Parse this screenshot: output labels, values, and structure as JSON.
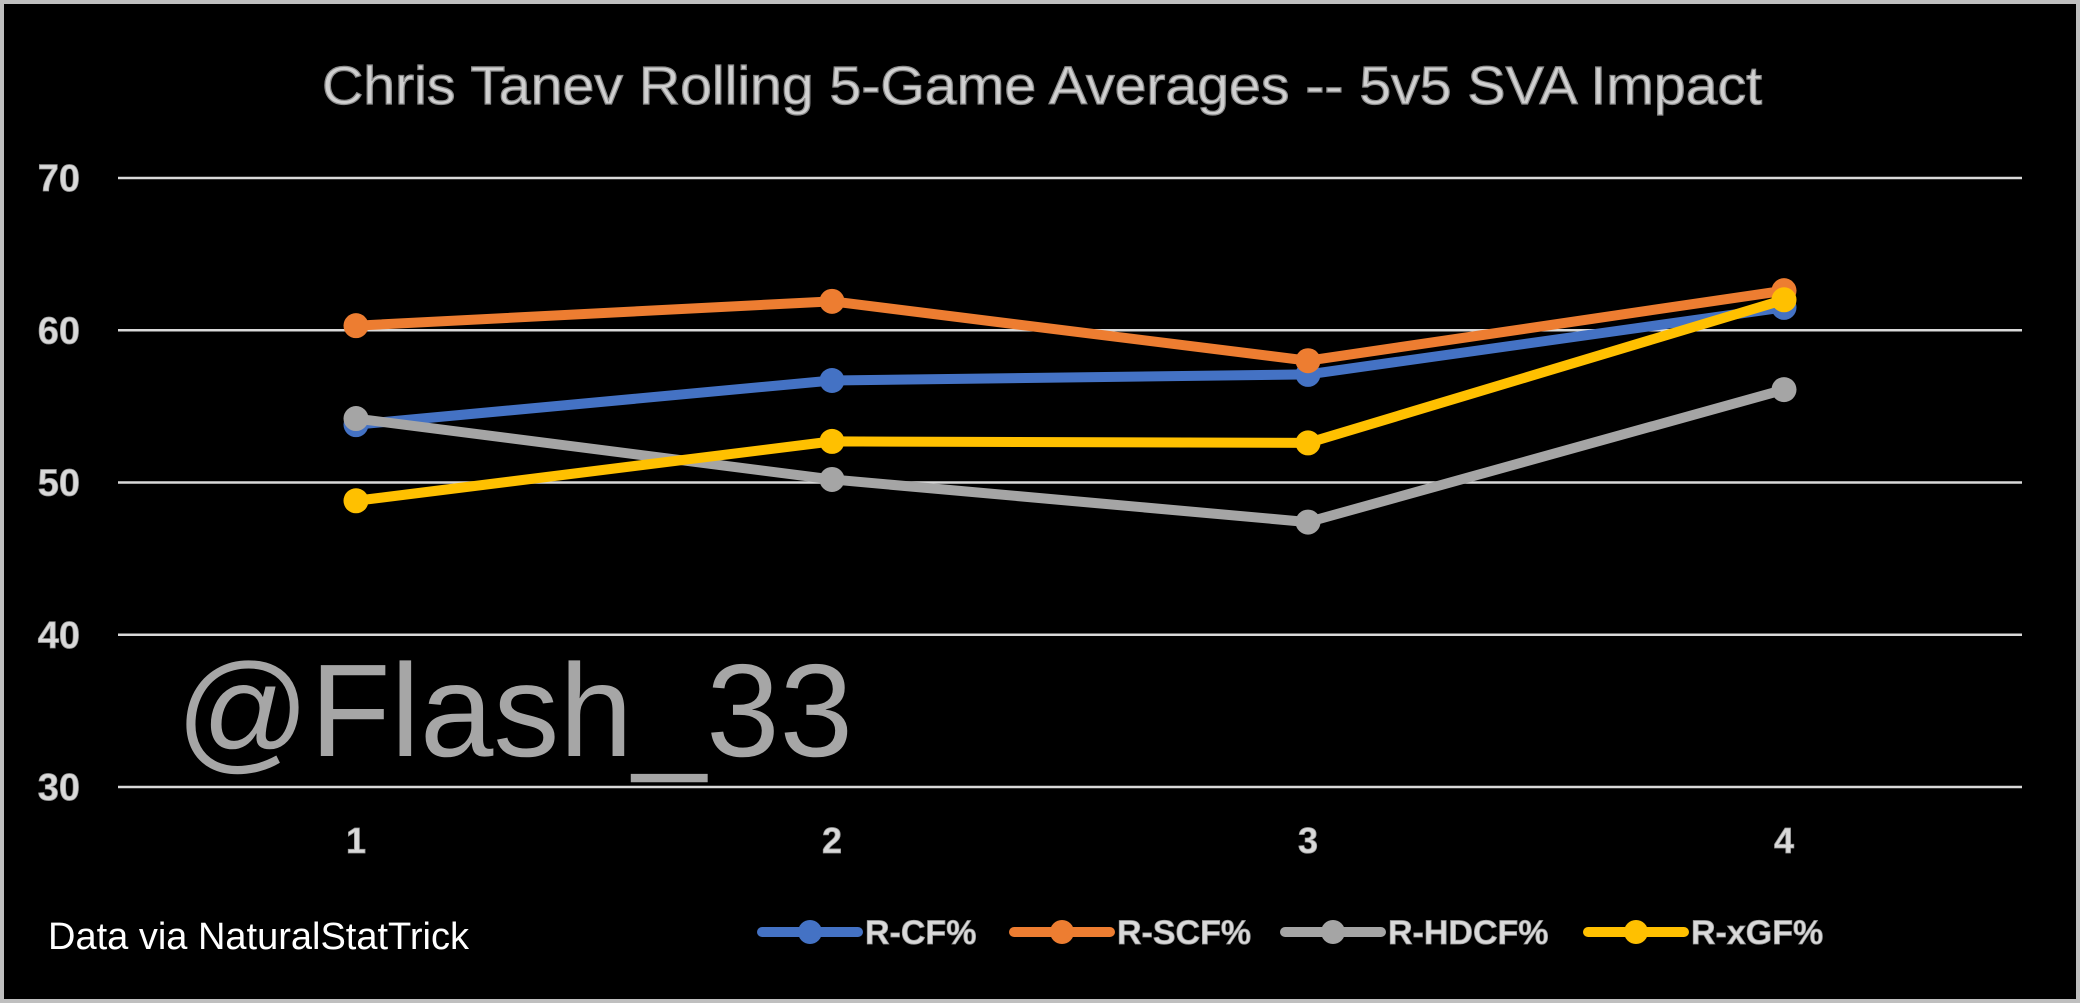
{
  "chart_data": {
    "type": "line",
    "title": "Chris Tanev Rolling 5-Game  Averages -- 5v5 SVA Impact",
    "xlabel": "",
    "ylabel": "",
    "categories": [
      "1",
      "2",
      "3",
      "4"
    ],
    "ylim": [
      30,
      70
    ],
    "yticks": [
      "30",
      "40",
      "50",
      "60",
      "70"
    ],
    "grid": true,
    "legend_position": "bottom",
    "series": [
      {
        "name": "R-CF%",
        "color": "#4472C4",
        "values": [
          53.8,
          56.7,
          57.1,
          61.5
        ]
      },
      {
        "name": "R-SCF%",
        "color": "#ED7D31",
        "values": [
          60.3,
          61.9,
          58.0,
          62.6
        ]
      },
      {
        "name": "R-HDCF%",
        "color": "#A5A5A5",
        "values": [
          54.2,
          50.2,
          47.4,
          56.1
        ]
      },
      {
        "name": "R-xGF%",
        "color": "#FFC000",
        "values": [
          48.8,
          52.7,
          52.6,
          62.0
        ]
      }
    ],
    "annotations": {
      "watermark": "@Flash_33",
      "source": "Data via NaturalStatTrick"
    }
  }
}
